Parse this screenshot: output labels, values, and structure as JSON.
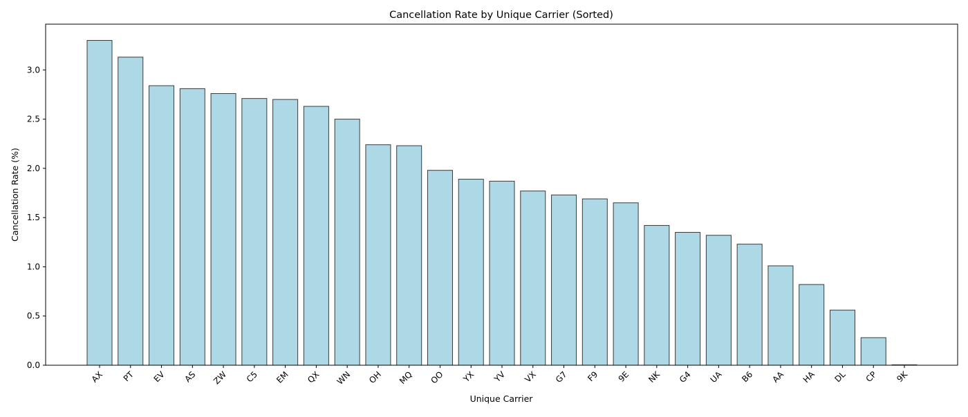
{
  "chart_data": {
    "type": "bar",
    "title": "Cancellation Rate by Unique Carrier (Sorted)",
    "xlabel": "Unique Carrier",
    "ylabel": "Cancellation Rate (%)",
    "categories": [
      "AX",
      "PT",
      "EV",
      "AS",
      "ZW",
      "C5",
      "EM",
      "QX",
      "WN",
      "OH",
      "MQ",
      "OO",
      "YX",
      "YV",
      "VX",
      "G7",
      "F9",
      "9E",
      "NK",
      "G4",
      "UA",
      "B6",
      "AA",
      "HA",
      "DL",
      "CP",
      "9K"
    ],
    "values": [
      3.3,
      3.13,
      2.84,
      2.81,
      2.76,
      2.71,
      2.7,
      2.63,
      2.5,
      2.24,
      2.23,
      1.98,
      1.89,
      1.87,
      1.77,
      1.73,
      1.69,
      1.65,
      1.42,
      1.35,
      1.32,
      1.23,
      1.01,
      0.82,
      0.56,
      0.28,
      0.0
    ],
    "yticks": [
      0.0,
      0.5,
      1.0,
      1.5,
      2.0,
      2.5,
      3.0
    ],
    "ytick_labels": [
      "0.0",
      "0.5",
      "1.0",
      "1.5",
      "2.0",
      "2.5",
      "3.0"
    ],
    "ylim": [
      0,
      3.465
    ],
    "grid": false,
    "legend": "none",
    "bar_color": "#add8e6",
    "bar_edge_color": "#3a3a3a"
  }
}
